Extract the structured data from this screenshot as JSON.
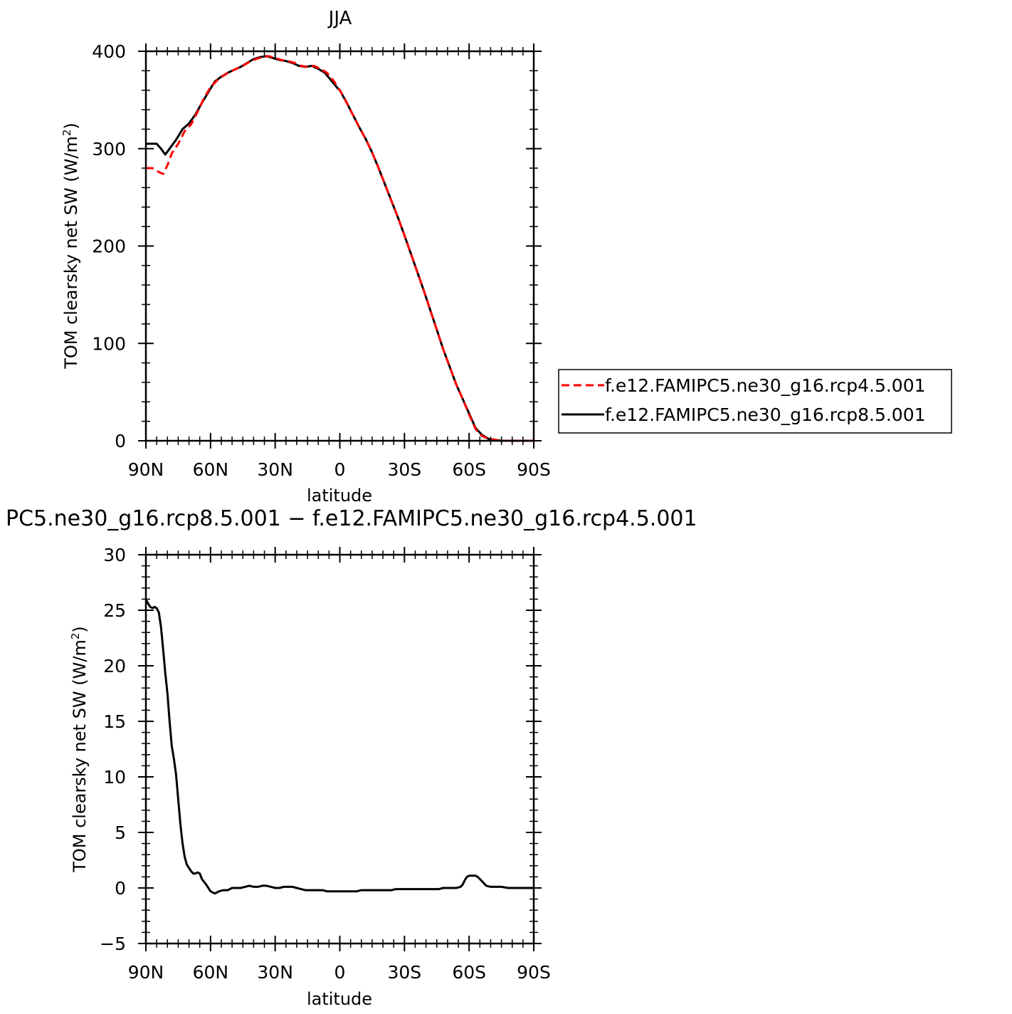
{
  "chart_data": [
    {
      "type": "line",
      "title": "JJA",
      "xlabel": "latitude",
      "ylabel_main": "TOM clearsky net SW (W/m",
      "ylabel_sup": "2",
      "ylabel_close": ")",
      "xlim": [
        90,
        -90
      ],
      "ylim": [
        0,
        400
      ],
      "xticks": [
        {
          "value": 90,
          "label": "90N"
        },
        {
          "value": 60,
          "label": "60N"
        },
        {
          "value": 30,
          "label": "30N"
        },
        {
          "value": 0,
          "label": "0"
        },
        {
          "value": -30,
          "label": "30S"
        },
        {
          "value": -60,
          "label": "60S"
        },
        {
          "value": -90,
          "label": "90S"
        }
      ],
      "yticks": [
        {
          "value": 0,
          "label": "0"
        },
        {
          "value": 100,
          "label": "100"
        },
        {
          "value": 200,
          "label": "200"
        },
        {
          "value": 300,
          "label": "300"
        },
        {
          "value": 400,
          "label": "400"
        }
      ],
      "legend_position": "right",
      "series": [
        {
          "name": "f.e12.FAMIPC5.ne30_g16.rcp4.5.001",
          "color": "#ff0000",
          "dash": "dashed",
          "points": [
            [
              90,
              280
            ],
            [
              87,
              280
            ],
            [
              84,
              276
            ],
            [
              82,
              274
            ],
            [
              80,
              283
            ],
            [
              78,
              295
            ],
            [
              75,
              305
            ],
            [
              72,
              318
            ],
            [
              69,
              325
            ],
            [
              66,
              338
            ],
            [
              63,
              352
            ],
            [
              60,
              363
            ],
            [
              57,
              370
            ],
            [
              54,
              375
            ],
            [
              51,
              379
            ],
            [
              48,
              382
            ],
            [
              45,
              385
            ],
            [
              42,
              389
            ],
            [
              39,
              392
            ],
            [
              36,
              394
            ],
            [
              33,
              395
            ],
            [
              30,
              393
            ],
            [
              27,
              391
            ],
            [
              24,
              390
            ],
            [
              21,
              388
            ],
            [
              18,
              385
            ],
            [
              15,
              384
            ],
            [
              12,
              385
            ],
            [
              9,
              382
            ],
            [
              6,
              378
            ],
            [
              3,
              370
            ],
            [
              0,
              360
            ],
            [
              -3,
              348
            ],
            [
              -6,
              335
            ],
            [
              -9,
              322
            ],
            [
              -12,
              310
            ],
            [
              -15,
              296
            ],
            [
              -18,
              280
            ],
            [
              -21,
              263
            ],
            [
              -24,
              246
            ],
            [
              -27,
              229
            ],
            [
              -30,
              211
            ],
            [
              -33,
              192
            ],
            [
              -36,
              173
            ],
            [
              -39,
              154
            ],
            [
              -42,
              134
            ],
            [
              -45,
              114
            ],
            [
              -48,
              94
            ],
            [
              -51,
              76
            ],
            [
              -54,
              58
            ],
            [
              -57,
              43
            ],
            [
              -60,
              27
            ],
            [
              -63,
              12
            ],
            [
              -66,
              5
            ],
            [
              -69,
              2
            ],
            [
              -72,
              1
            ],
            [
              -75,
              0
            ],
            [
              -78,
              0
            ],
            [
              -81,
              0
            ],
            [
              -84,
              0
            ],
            [
              -87,
              0
            ],
            [
              -90,
              0
            ]
          ]
        },
        {
          "name": "f.e12.FAMIPC5.ne30_g16.rcp8.5.001",
          "color": "#000000",
          "dash": "solid",
          "points": [
            [
              90,
              305
            ],
            [
              87,
              305
            ],
            [
              85,
              305
            ],
            [
              83,
              300
            ],
            [
              81,
              294
            ],
            [
              79,
              300
            ],
            [
              76,
              309
            ],
            [
              73,
              320
            ],
            [
              70,
              326
            ],
            [
              67,
              335
            ],
            [
              64,
              347
            ],
            [
              61,
              358
            ],
            [
              58,
              369
            ],
            [
              55,
              374
            ],
            [
              52,
              378
            ],
            [
              49,
              381
            ],
            [
              46,
              384
            ],
            [
              43,
              388
            ],
            [
              40,
              392
            ],
            [
              37,
              394
            ],
            [
              34,
              395
            ],
            [
              31,
              393
            ],
            [
              28,
              391
            ],
            [
              25,
              390
            ],
            [
              22,
              388
            ],
            [
              19,
              385
            ],
            [
              16,
              384
            ],
            [
              13,
              385
            ],
            [
              10,
              382
            ],
            [
              7,
              378
            ],
            [
              4,
              370
            ],
            [
              1,
              362
            ],
            [
              0,
              360
            ],
            [
              -3,
              348
            ],
            [
              -6,
              335
            ],
            [
              -9,
              322
            ],
            [
              -12,
              310
            ],
            [
              -15,
              296
            ],
            [
              -18,
              280
            ],
            [
              -21,
              263
            ],
            [
              -24,
              246
            ],
            [
              -27,
              229
            ],
            [
              -30,
              211
            ],
            [
              -33,
              192
            ],
            [
              -36,
              173
            ],
            [
              -39,
              154
            ],
            [
              -42,
              134
            ],
            [
              -45,
              114
            ],
            [
              -48,
              94
            ],
            [
              -51,
              76
            ],
            [
              -54,
              58
            ],
            [
              -57,
              43
            ],
            [
              -60,
              28
            ],
            [
              -63,
              13
            ],
            [
              -66,
              6
            ],
            [
              -69,
              2
            ],
            [
              -72,
              1
            ],
            [
              -75,
              0
            ],
            [
              -78,
              0
            ],
            [
              -81,
              0
            ],
            [
              -84,
              0
            ],
            [
              -87,
              0
            ],
            [
              -90,
              0
            ]
          ]
        }
      ]
    },
    {
      "type": "line",
      "title": "PC5.ne30_g16.rcp8.5.001 − f.e12.FAMIPC5.ne30_g16.rcp4.5.001",
      "xlabel": "latitude",
      "ylabel_main": "TOM clearsky net SW (W/m",
      "ylabel_sup": "2",
      "ylabel_close": ")",
      "xlim": [
        90,
        -90
      ],
      "ylim": [
        -5,
        30
      ],
      "xticks": [
        {
          "value": 90,
          "label": "90N"
        },
        {
          "value": 60,
          "label": "60N"
        },
        {
          "value": 30,
          "label": "30N"
        },
        {
          "value": 0,
          "label": "0"
        },
        {
          "value": -30,
          "label": "30S"
        },
        {
          "value": -60,
          "label": "60S"
        },
        {
          "value": -90,
          "label": "90S"
        }
      ],
      "yticks": [
        {
          "value": -5,
          "label": "−5"
        },
        {
          "value": 0,
          "label": "0"
        },
        {
          "value": 5,
          "label": "5"
        },
        {
          "value": 10,
          "label": "10"
        },
        {
          "value": 15,
          "label": "15"
        },
        {
          "value": 20,
          "label": "20"
        },
        {
          "value": 25,
          "label": "25"
        },
        {
          "value": 30,
          "label": "30"
        }
      ],
      "series": [
        {
          "color": "#000000",
          "dash": "solid",
          "points": [
            [
              90,
              26
            ],
            [
              89,
              25.6
            ],
            [
              88,
              25.3
            ],
            [
              87,
              25.2
            ],
            [
              86,
              25.3
            ],
            [
              85,
              25.2
            ],
            [
              84,
              24.8
            ],
            [
              83,
              23.5
            ],
            [
              82,
              21.5
            ],
            [
              81,
              19.3
            ],
            [
              80,
              17.5
            ],
            [
              79,
              15
            ],
            [
              78,
              12.8
            ],
            [
              77,
              11.6
            ],
            [
              76,
              10.2
            ],
            [
              75,
              8
            ],
            [
              74,
              5.8
            ],
            [
              73,
              4
            ],
            [
              72,
              2.8
            ],
            [
              71,
              2.1
            ],
            [
              70,
              1.8
            ],
            [
              69,
              1.5
            ],
            [
              68,
              1.3
            ],
            [
              67,
              1.3
            ],
            [
              66,
              1.4
            ],
            [
              65,
              1.3
            ],
            [
              64,
              0.8
            ],
            [
              62,
              0.3
            ],
            [
              60,
              -0.3
            ],
            [
              58,
              -0.5
            ],
            [
              56,
              -0.3
            ],
            [
              54,
              -0.2
            ],
            [
              52,
              -0.2
            ],
            [
              50,
              0
            ],
            [
              48,
              0
            ],
            [
              46,
              0
            ],
            [
              44,
              0.1
            ],
            [
              42,
              0.2
            ],
            [
              40,
              0.1
            ],
            [
              38,
              0.1
            ],
            [
              36,
              0.2
            ],
            [
              34,
              0.2
            ],
            [
              32,
              0.1
            ],
            [
              30,
              0
            ],
            [
              28,
              0
            ],
            [
              26,
              0.1
            ],
            [
              24,
              0.1
            ],
            [
              22,
              0.1
            ],
            [
              20,
              0
            ],
            [
              18,
              -0.1
            ],
            [
              16,
              -0.2
            ],
            [
              14,
              -0.2
            ],
            [
              12,
              -0.2
            ],
            [
              10,
              -0.2
            ],
            [
              8,
              -0.2
            ],
            [
              6,
              -0.3
            ],
            [
              4,
              -0.3
            ],
            [
              2,
              -0.3
            ],
            [
              0,
              -0.3
            ],
            [
              -2,
              -0.3
            ],
            [
              -4,
              -0.3
            ],
            [
              -6,
              -0.3
            ],
            [
              -8,
              -0.3
            ],
            [
              -10,
              -0.2
            ],
            [
              -12,
              -0.2
            ],
            [
              -14,
              -0.2
            ],
            [
              -16,
              -0.2
            ],
            [
              -18,
              -0.2
            ],
            [
              -20,
              -0.2
            ],
            [
              -22,
              -0.2
            ],
            [
              -24,
              -0.2
            ],
            [
              -26,
              -0.1
            ],
            [
              -28,
              -0.1
            ],
            [
              -30,
              -0.1
            ],
            [
              -32,
              -0.1
            ],
            [
              -34,
              -0.1
            ],
            [
              -36,
              -0.1
            ],
            [
              -38,
              -0.1
            ],
            [
              -40,
              -0.1
            ],
            [
              -42,
              -0.1
            ],
            [
              -44,
              -0.1
            ],
            [
              -46,
              -0.1
            ],
            [
              -48,
              0
            ],
            [
              -50,
              0
            ],
            [
              -52,
              0
            ],
            [
              -54,
              0
            ],
            [
              -56,
              0.1
            ],
            [
              -57,
              0.3
            ],
            [
              -58,
              0.7
            ],
            [
              -59,
              1
            ],
            [
              -60,
              1.1
            ],
            [
              -61,
              1.1
            ],
            [
              -62,
              1.1
            ],
            [
              -63,
              1.1
            ],
            [
              -64,
              1
            ],
            [
              -65,
              0.8
            ],
            [
              -66,
              0.6
            ],
            [
              -67,
              0.4
            ],
            [
              -68,
              0.2
            ],
            [
              -70,
              0.1
            ],
            [
              -72,
              0.1
            ],
            [
              -75,
              0.1
            ],
            [
              -78,
              0
            ],
            [
              -81,
              0
            ],
            [
              -84,
              0
            ],
            [
              -87,
              0
            ],
            [
              -90,
              0
            ]
          ]
        }
      ]
    }
  ]
}
